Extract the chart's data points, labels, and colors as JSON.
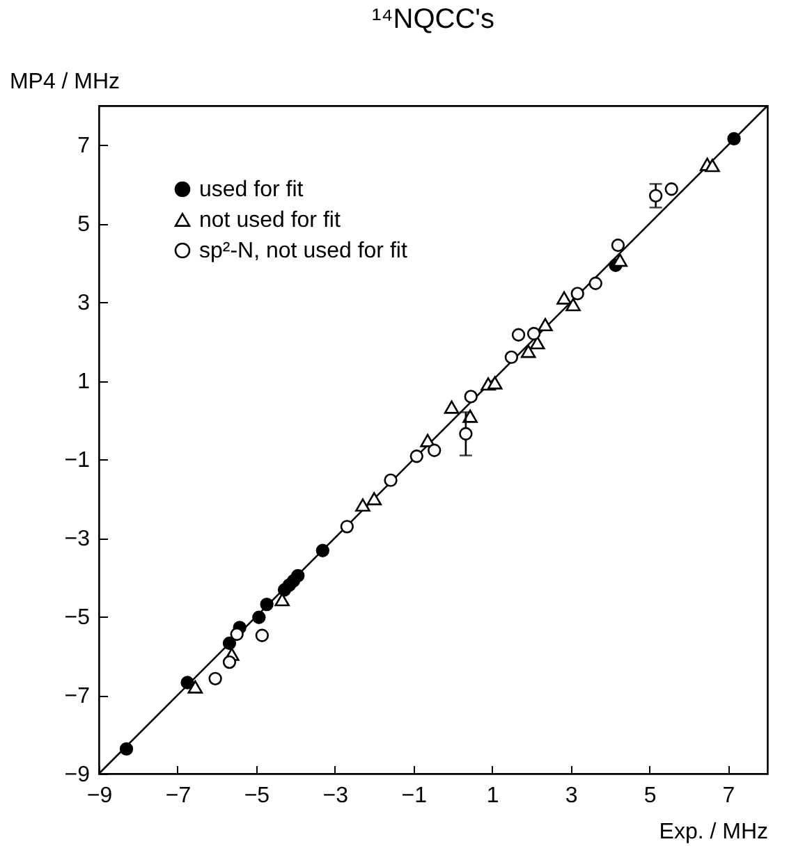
{
  "chart_data": {
    "type": "scatter",
    "title": "¹⁴NQCC's",
    "xlabel": "Exp. / MHz",
    "ylabel": "MP4 / MHz",
    "xlim": [
      -9,
      8
    ],
    "ylim": [
      -9,
      8
    ],
    "xticks": [
      -9,
      -7,
      -5,
      -3,
      -1,
      1,
      3,
      5,
      7
    ],
    "yticks": [
      -9,
      -7,
      -5,
      -3,
      -1,
      1,
      3,
      5,
      7
    ],
    "grid": false,
    "legend": "top left",
    "series": [
      {
        "name": "used for fit",
        "color": "#000000",
        "marker": "circle",
        "x": [
          -8.3,
          -6.75,
          -5.68,
          -5.42,
          -4.93,
          -4.73,
          -4.28,
          -4.16,
          -4.05,
          -3.94,
          -3.31,
          4.14,
          7.15
        ],
        "values": [
          -8.37,
          -6.68,
          -5.68,
          -5.28,
          -5.02,
          -4.69,
          -4.32,
          -4.2,
          -4.09,
          -3.96,
          -3.32,
          3.94,
          7.16
        ]
      },
      {
        "name": "not used for fit",
        "color": "#000000",
        "marker": "triangle",
        "x": [
          -6.55,
          -5.62,
          -4.34,
          -2.29,
          -2.0,
          -0.64,
          -0.03,
          0.44,
          0.9,
          1.07,
          1.92,
          2.15,
          2.35,
          2.83,
          3.06,
          4.25,
          6.47,
          6.6
        ],
        "values": [
          -6.79,
          -5.96,
          -4.57,
          -2.16,
          -2.0,
          -0.52,
          0.33,
          0.1,
          0.92,
          0.95,
          1.75,
          1.97,
          2.43,
          3.11,
          2.94,
          4.07,
          6.51,
          6.48
        ]
      },
      {
        "name": "sp²-N, not used for fit",
        "color": "#000000",
        "marker": "circle",
        "x": [
          -6.04,
          -5.68,
          -5.49,
          -4.85,
          -2.69,
          -1.58,
          -0.92,
          -0.47,
          0.33,
          0.46,
          1.49,
          1.67,
          2.06,
          3.17,
          3.63,
          4.2,
          5.16,
          5.56
        ],
        "values": [
          -6.58,
          -6.16,
          -5.45,
          -5.48,
          -2.71,
          -1.53,
          -0.92,
          -0.77,
          -0.35,
          0.6,
          1.6,
          2.17,
          2.2,
          3.22,
          3.48,
          4.45,
          5.71,
          5.88
        ],
        "errors": [
          null,
          null,
          null,
          null,
          null,
          null,
          null,
          null,
          0.55,
          null,
          null,
          null,
          null,
          null,
          null,
          null,
          0.3,
          null
        ]
      },
      {
        "type": "line",
        "color": "#000000",
        "x": [
          -9,
          8
        ],
        "values": [
          -9,
          8
        ]
      }
    ]
  }
}
